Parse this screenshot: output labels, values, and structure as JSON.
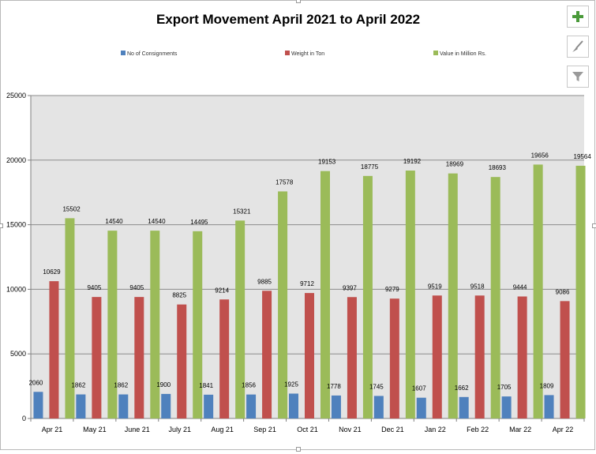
{
  "buttons": {
    "add_icon": "plus-icon",
    "style_icon": "brush-icon",
    "filter_icon": "filter-icon"
  },
  "colors": {
    "plot_bg": "#e4e4e4",
    "series1": "#4f81bd",
    "series2": "#c0504d",
    "series3": "#9bbb59"
  },
  "chart_data": {
    "type": "bar",
    "title": "Export Movement April 2021 to April 2022",
    "xlabel": "",
    "ylabel": "",
    "ylim": [
      0,
      25000
    ],
    "yticks": [
      "0",
      "5000",
      "10000",
      "15000",
      "20000",
      "25000"
    ],
    "grid": true,
    "legend": "top",
    "categories": [
      "Apr 21",
      "May 21",
      "June 21",
      "July 21",
      "Aug 21",
      "Sep 21",
      "Oct 21",
      "Nov 21",
      "Dec 21",
      "Jan 22",
      "Feb 22",
      "Mar 22",
      "Apr 22"
    ],
    "series": [
      {
        "name": "No of Consignments",
        "color": "#4f81bd",
        "values": [
          2060,
          1862,
          1862,
          1900,
          1841,
          1856,
          1925,
          1778,
          1745,
          1607,
          1662,
          1705,
          1809
        ]
      },
      {
        "name": "Weight in Ton",
        "color": "#c0504d",
        "values": [
          10629,
          9405,
          9405,
          8825,
          9214,
          9885,
          9712,
          9397,
          9279,
          9519,
          9518,
          9444,
          9086
        ]
      },
      {
        "name": "Value in Million Rs.",
        "color": "#9bbb59",
        "values": [
          15502,
          14540,
          14540,
          14495,
          15321,
          17578,
          19153,
          18775,
          19192,
          18969,
          18693,
          19656,
          19564
        ]
      }
    ]
  }
}
